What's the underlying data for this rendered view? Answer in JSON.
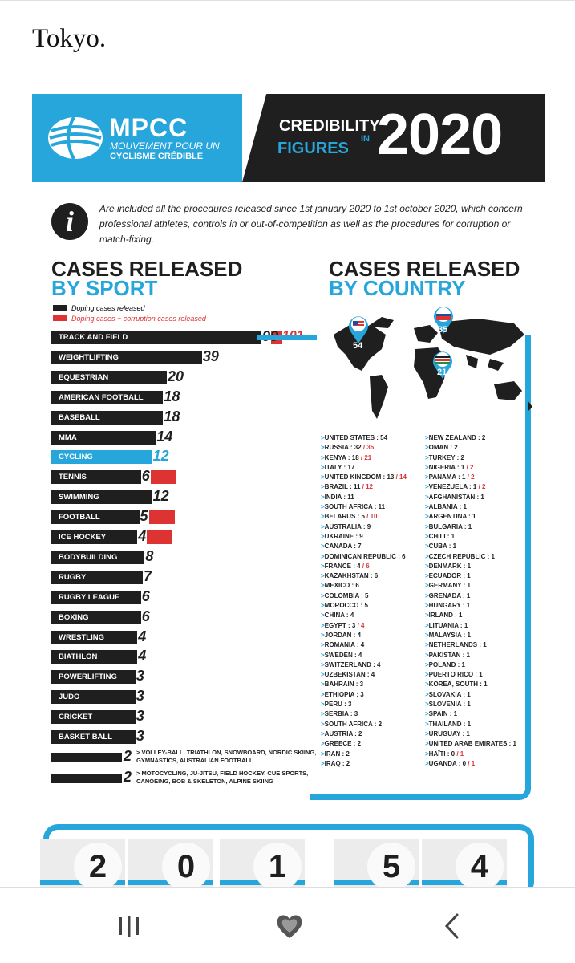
{
  "article": {
    "visible_text": "Tokyo."
  },
  "header": {
    "brand": "MPCC",
    "brand_line1": "MOUVEMENT POUR UN",
    "brand_line2": "CYCLISME CRÉDIBLE",
    "credibility": "CREDIBILITY",
    "figures": "FIGURES",
    "in": "IN",
    "year": "2020"
  },
  "info": {
    "icon": "info-icon",
    "text": "Are included all the procedures released since 1st january 2020 to 1st october 2020, which concern professional athletes, controls in or out-of-competition as well as the procedures for corruption or match-fixing."
  },
  "sport_section": {
    "title_line1": "CASES RELEASED",
    "title_line2": "BY SPORT",
    "legend_doping": "Doping cases released",
    "legend_corruption": "Doping cases + corruption cases released",
    "sports": [
      {
        "name": "TRACK AND FIELD",
        "doping": 99,
        "total": 101
      },
      {
        "name": "WEIGHTLIFTING",
        "doping": 39
      },
      {
        "name": "EQUESTRIAN",
        "doping": 20
      },
      {
        "name": "AMERICAN FOOTBALL",
        "doping": 18
      },
      {
        "name": "BASEBALL",
        "doping": 18
      },
      {
        "name": "MMA",
        "doping": 14
      },
      {
        "name": "CYCLING",
        "doping": 12,
        "highlight": true
      },
      {
        "name": "TENNIS",
        "doping": 6,
        "total": 12
      },
      {
        "name": "SWIMMING",
        "doping": 12
      },
      {
        "name": "FOOTBALL",
        "doping": 5,
        "total": 12
      },
      {
        "name": "ICE HOCKEY",
        "doping": 4,
        "total": 10
      },
      {
        "name": "BODYBUILDING",
        "doping": 8
      },
      {
        "name": "RUGBY",
        "doping": 7
      },
      {
        "name": "RUGBY LEAGUE",
        "doping": 6
      },
      {
        "name": "BOXING",
        "doping": 6
      },
      {
        "name": "WRESTLING",
        "doping": 4
      },
      {
        "name": "BIATHLON",
        "doping": 4
      },
      {
        "name": "POWERLIFTING",
        "doping": 3
      },
      {
        "name": "JUDO",
        "doping": 3
      },
      {
        "name": "CRICKET",
        "doping": 3
      },
      {
        "name": "BASKET BALL",
        "doping": 3
      }
    ],
    "notes": [
      {
        "value": "2",
        "text": "> VOLLEY-BALL, TRIATHLON, SNOWBOARD, NORDIC SKIING, GYMNASTICS, AUSTRALIAN FOOTBALL"
      },
      {
        "value": "2",
        "text": "> MOTOCYCLING, JU-JITSU, FIELD HOCKEY, CUE SPORTS, CANOEING, BOB & SKELETON, ALPINE SKIING"
      }
    ]
  },
  "country_section": {
    "title_line1": "CASES RELEASED",
    "title_line2": "BY COUNTRY",
    "pins": [
      {
        "flag": "usa-flag-icon",
        "value": "54"
      },
      {
        "flag": "russia-flag-icon",
        "value": "35"
      },
      {
        "flag": "kenya-flag-icon",
        "value": "21"
      }
    ],
    "col1": [
      {
        "name": "UNITED STATES",
        "v": "54"
      },
      {
        "name": "RUSSIA",
        "v": "32",
        "v2": "35"
      },
      {
        "name": "KENYA",
        "v": "18",
        "v2": "21"
      },
      {
        "name": "ITALY",
        "v": "17"
      },
      {
        "name": "UNITED KINGDOM",
        "v": "13",
        "v2": "14"
      },
      {
        "name": "BRAZIL",
        "v": "11",
        "v2": "12"
      },
      {
        "name": "INDIA",
        "v": "11"
      },
      {
        "name": "SOUTH AFRICA",
        "v": "11"
      },
      {
        "name": "BELARUS",
        "v": "5",
        "v2": "10"
      },
      {
        "name": "AUSTRALIA",
        "v": "9"
      },
      {
        "name": "UKRAINE",
        "v": "9"
      },
      {
        "name": "CANADA",
        "v": "7"
      },
      {
        "name": "DOMINICAN REPUBLIC",
        "v": "6"
      },
      {
        "name": "FRANCE",
        "v": "4",
        "v2": "6"
      },
      {
        "name": "KAZAKHSTAN",
        "v": "6"
      },
      {
        "name": "MEXICO",
        "v": "6"
      },
      {
        "name": "COLOMBIA",
        "v": "5"
      },
      {
        "name": "MOROCCO",
        "v": "5"
      },
      {
        "name": "CHINA",
        "v": "4"
      },
      {
        "name": "EGYPT",
        "v": "3",
        "v2": "4"
      },
      {
        "name": "JORDAN",
        "v": "4"
      },
      {
        "name": "ROMANIA",
        "v": "4"
      },
      {
        "name": "SWEDEN",
        "v": "4"
      },
      {
        "name": "SWITZERLAND",
        "v": "4"
      },
      {
        "name": "UZBEKISTAN",
        "v": "4"
      },
      {
        "name": "BAHRAIN",
        "v": "3"
      },
      {
        "name": "ETHIOPIA",
        "v": "3"
      },
      {
        "name": "PERU",
        "v": "3"
      },
      {
        "name": "SERBIA",
        "v": "3"
      },
      {
        "name": "SOUTH AFRICA",
        "v": "2"
      },
      {
        "name": "AUSTRIA",
        "v": "2"
      },
      {
        "name": "GREECE",
        "v": "2"
      },
      {
        "name": "IRAN",
        "v": "2"
      },
      {
        "name": "IRAQ",
        "v": "2"
      }
    ],
    "col2": [
      {
        "name": "NEW ZEALAND",
        "v": "2"
      },
      {
        "name": "OMAN",
        "v": "2"
      },
      {
        "name": "TURKEY",
        "v": "2"
      },
      {
        "name": "NIGERIA",
        "v": "1",
        "v2": "2"
      },
      {
        "name": "PANAMA",
        "v": "1",
        "v2": "2"
      },
      {
        "name": "VENEZUELA",
        "v": "1",
        "v2": "2"
      },
      {
        "name": "AFGHANISTAN",
        "v": "1"
      },
      {
        "name": "ALBANIA",
        "v": "1"
      },
      {
        "name": "ARGENTINA",
        "v": "1"
      },
      {
        "name": "BULGARIA",
        "v": "1"
      },
      {
        "name": "CHILI",
        "v": "1"
      },
      {
        "name": "CUBA",
        "v": "1"
      },
      {
        "name": "CZECH REPUBLIC",
        "v": "1"
      },
      {
        "name": "DENMARK",
        "v": "1"
      },
      {
        "name": "ECUADOR",
        "v": "1"
      },
      {
        "name": "GERMANY",
        "v": "1"
      },
      {
        "name": "GRENADA",
        "v": "1"
      },
      {
        "name": "HUNGARY",
        "v": "1"
      },
      {
        "name": "IRLAND",
        "v": "1"
      },
      {
        "name": "LITUANIA",
        "v": "1"
      },
      {
        "name": "MALAYSIA",
        "v": "1"
      },
      {
        "name": "NETHERLANDS",
        "v": "1"
      },
      {
        "name": "PAKISTAN",
        "v": "1"
      },
      {
        "name": "POLAND",
        "v": "1"
      },
      {
        "name": "PUERTO RICO",
        "v": "1"
      },
      {
        "name": "KOREA, SOUTH",
        "v": "1"
      },
      {
        "name": "SLOVAKIA",
        "v": "1"
      },
      {
        "name": "SLOVENIA",
        "v": "1"
      },
      {
        "name": "SPAIN",
        "v": "1"
      },
      {
        "name": "THAÏLAND",
        "v": "1"
      },
      {
        "name": "URUGUAY",
        "v": "1"
      },
      {
        "name": "UNITED ARAB EMIRATES",
        "v": "1"
      },
      {
        "name": "HAÏTI",
        "v": "0",
        "v2": "1"
      },
      {
        "name": "UGANDA",
        "v": "0",
        "v2": "1"
      }
    ]
  },
  "counter_digits": [
    "2",
    "0",
    "1",
    "5",
    "4"
  ],
  "colors": {
    "accent_blue": "#27a6dc",
    "dark": "#1f1f1f",
    "red": "#dd3333"
  },
  "navbar": {
    "recent": "recent-apps-icon",
    "home": "heart-icon",
    "back": "back-chevron-icon"
  }
}
